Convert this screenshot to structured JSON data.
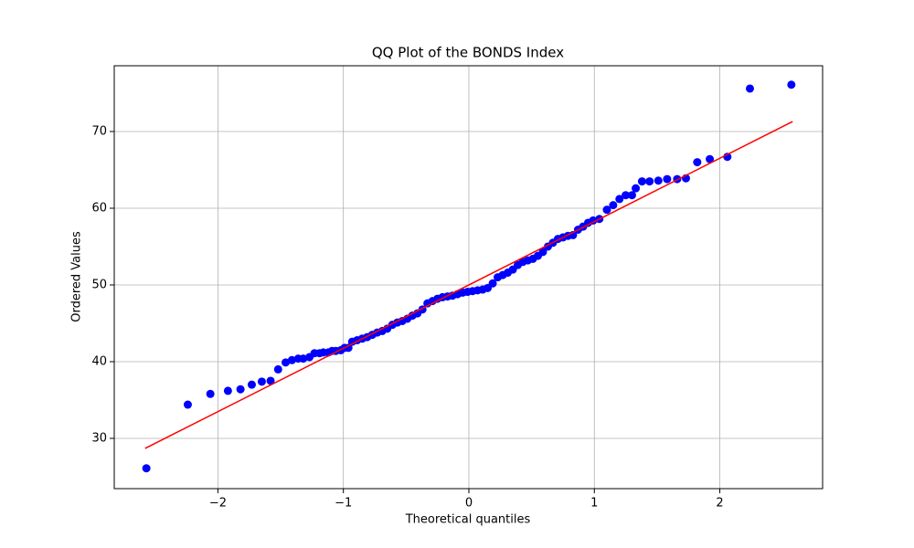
{
  "chart_data": {
    "type": "scatter",
    "title": "QQ Plot of the BONDS Index",
    "x_label": "Theoretical quantiles",
    "y_label": "Ordered Values",
    "xlim": [
      -2.826,
      2.819
    ],
    "ylim": [
      23.45,
      78.57
    ],
    "xticks": [
      {
        "value": -2,
        "label": "−2"
      },
      {
        "value": -1,
        "label": "−1"
      },
      0,
      1,
      2
    ],
    "yticks": [
      30,
      40,
      50,
      60,
      70
    ],
    "grid": true,
    "series": [
      {
        "color": "#0000ff",
        "mode": "markers",
        "x": [
          -2.57,
          -2.24,
          -2.06,
          -1.92,
          -1.82,
          -1.73,
          -1.65,
          -1.58,
          -1.52,
          -1.46,
          -1.41,
          -1.36,
          -1.32,
          -1.27,
          -1.23,
          -1.19,
          -1.16,
          -1.12,
          -1.09,
          -1.06,
          -1.02,
          -0.99,
          -0.96,
          -0.93,
          -0.89,
          -0.85,
          -0.81,
          -0.77,
          -0.73,
          -0.69,
          -0.65,
          -0.61,
          -0.57,
          -0.53,
          -0.49,
          -0.45,
          -0.41,
          -0.37,
          -0.33,
          -0.29,
          -0.25,
          -0.21,
          -0.17,
          -0.13,
          -0.09,
          -0.05,
          -0.01,
          0.03,
          0.07,
          0.11,
          0.15,
          0.19,
          0.23,
          0.27,
          0.31,
          0.35,
          0.39,
          0.43,
          0.47,
          0.51,
          0.55,
          0.59,
          0.63,
          0.67,
          0.71,
          0.75,
          0.79,
          0.83,
          0.87,
          0.91,
          0.95,
          0.99,
          1.04,
          1.1,
          1.15,
          1.2,
          1.25,
          1.3,
          1.33,
          1.38,
          1.44,
          1.51,
          1.58,
          1.66,
          1.73,
          1.82,
          1.92,
          2.06,
          2.24,
          2.57
        ],
        "values": [
          26.1,
          34.4,
          35.8,
          36.2,
          36.4,
          37.0,
          37.4,
          37.5,
          39.0,
          39.9,
          40.2,
          40.4,
          40.4,
          40.6,
          41.1,
          41.1,
          41.2,
          41.2,
          41.4,
          41.4,
          41.5,
          41.8,
          41.8,
          42.6,
          42.8,
          43.0,
          43.2,
          43.5,
          43.8,
          44.0,
          44.3,
          44.8,
          45.1,
          45.3,
          45.6,
          46.0,
          46.3,
          46.8,
          47.6,
          47.9,
          48.2,
          48.4,
          48.5,
          48.6,
          48.8,
          49.0,
          49.1,
          49.2,
          49.3,
          49.4,
          49.6,
          50.2,
          51.0,
          51.3,
          51.6,
          52.0,
          52.6,
          53.0,
          53.2,
          53.4,
          53.8,
          54.3,
          55.0,
          55.5,
          56.0,
          56.2,
          56.4,
          56.5,
          57.2,
          57.6,
          58.1,
          58.4,
          58.6,
          59.8,
          60.4,
          61.2,
          61.7,
          61.7,
          62.6,
          63.5,
          63.5,
          63.6,
          63.8,
          63.8,
          63.9,
          66.0,
          66.4,
          66.7,
          75.6,
          76.1
        ]
      },
      {
        "color": "#ff0000",
        "mode": "line",
        "x": [
          -2.58,
          2.58
        ],
        "values": [
          28.7,
          71.3
        ]
      }
    ]
  }
}
